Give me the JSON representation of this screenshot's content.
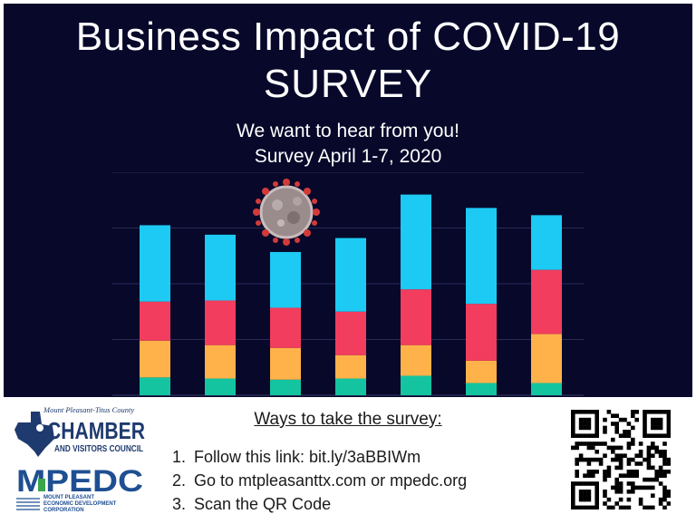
{
  "title_line1": "Business Impact of COVID-19",
  "title_line2": "SURVEY",
  "subtitle_line1": "We want to hear from you!",
  "subtitle_line2": "Survey April 1-7, 2020",
  "ways": {
    "heading": "Ways to take the survey:",
    "items": [
      {
        "num": "1.",
        "text": "Follow this link: bit.ly/3aBBIWm"
      },
      {
        "num": "2.",
        "text": "Go to mtpleasanttx.com or mpedc.org"
      },
      {
        "num": "3.",
        "text": "Scan the QR Code"
      }
    ]
  },
  "logos": {
    "chamber_top": "Mount Pleasant-Titus County",
    "chamber_main": "CHAMBER",
    "chamber_sub": "AND VISITORS COUNCIL",
    "mpedc_main": "MPEDC",
    "mpedc_sub1": "MOUNT PLEASANT",
    "mpedc_sub2": "ECONOMIC DEVELOPMENT",
    "mpedc_sub3": "CORPORATION"
  },
  "colors": {
    "background": "#07082a",
    "seg_teal": "#14c4a0",
    "seg_orange": "#ffb24a",
    "seg_red": "#f23d5e",
    "seg_blue": "#1ccaf3"
  },
  "chart_data": {
    "type": "bar",
    "stacked": true,
    "grid": true,
    "ylim": [
      0,
      4
    ],
    "categories": [
      "",
      "",
      "",
      "",
      "",
      "",
      ""
    ],
    "series": [
      {
        "values": [
          0.32,
          0.3,
          0.28,
          0.3,
          0.35,
          0.22,
          0.22
        ]
      },
      {
        "values": [
          0.66,
          0.6,
          0.57,
          0.42,
          0.55,
          0.4,
          0.88
        ]
      },
      {
        "values": [
          0.7,
          0.8,
          0.72,
          0.78,
          1.0,
          1.02,
          1.15
        ]
      },
      {
        "values": [
          1.37,
          1.18,
          1.0,
          1.32,
          1.7,
          1.72,
          0.98
        ]
      }
    ]
  }
}
